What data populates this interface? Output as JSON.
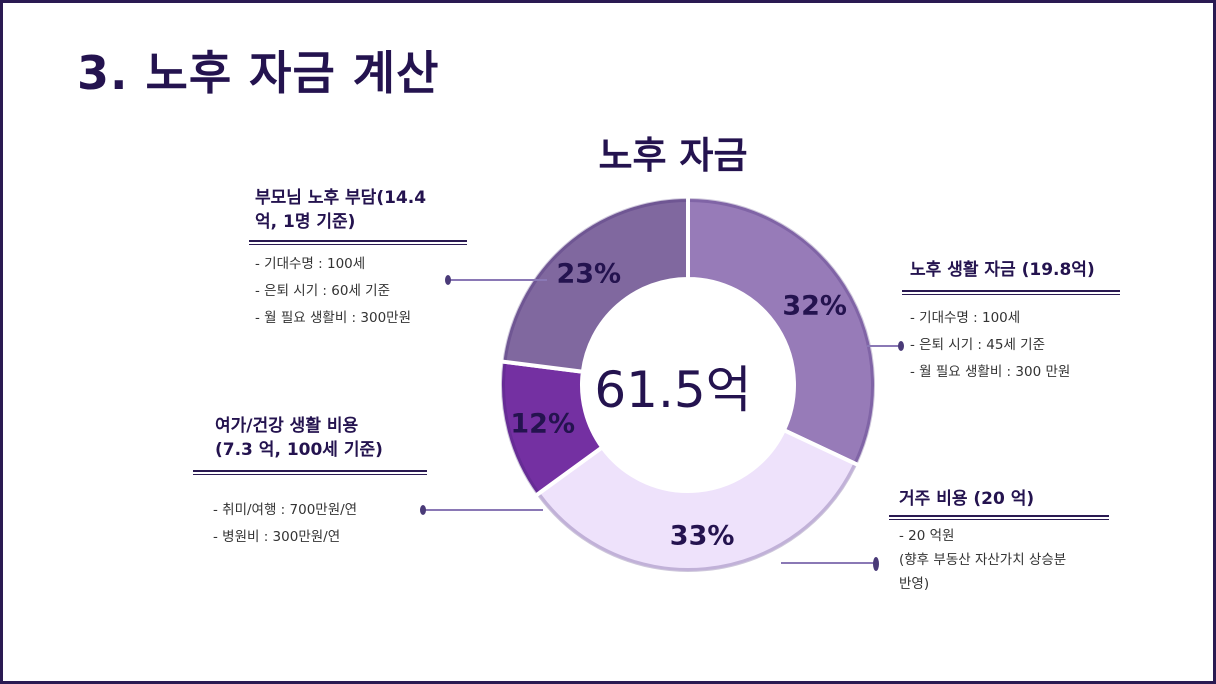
{
  "page": {
    "title": "3. 노후 자금 계산"
  },
  "chart_data": {
    "type": "pie",
    "title": "노후 자금",
    "center_label": "61.5억",
    "categories": [
      "노후 생활 자금",
      "거주 비용",
      "여가/건강 생활 비용",
      "부모님 노후 부담"
    ],
    "values": [
      32,
      33,
      12,
      23
    ],
    "value_labels": [
      "32%",
      "33%",
      "12%",
      "23%"
    ],
    "colors": [
      "#977bb8",
      "#eee2fb",
      "#7430a2",
      "#80689f"
    ],
    "label_colors": [
      "#24134f",
      "#24134f",
      "#24134f",
      "#24134f"
    ]
  },
  "annotations": {
    "parents": {
      "heading": "부모님 노후 부담(14.4\n억, 1명 기준)",
      "items": [
        "- 기대수명 : 100세",
        "- 은퇴 시기 : 60세 기준",
        "- 월 필요 생활비 : 300만원"
      ]
    },
    "leisure": {
      "heading": "여가/건강 생활 비용\n(7.3 억, 100세 기준)",
      "items": [
        "- 취미/여행 : 700만원/연",
        "- 병원비 : 300만원/연"
      ]
    },
    "living": {
      "heading": "노후 생활 자금 (19.8억)",
      "items": [
        "- 기대수명 : 100세",
        "- 은퇴 시기 : 45세 기준",
        "- 월 필요 생활비 : 300 만원"
      ]
    },
    "housing": {
      "heading": "거주 비용 (20 억)",
      "item": "- 20 억원",
      "note": "(향후 부동산 자산가치 상승분\n반영)"
    }
  }
}
